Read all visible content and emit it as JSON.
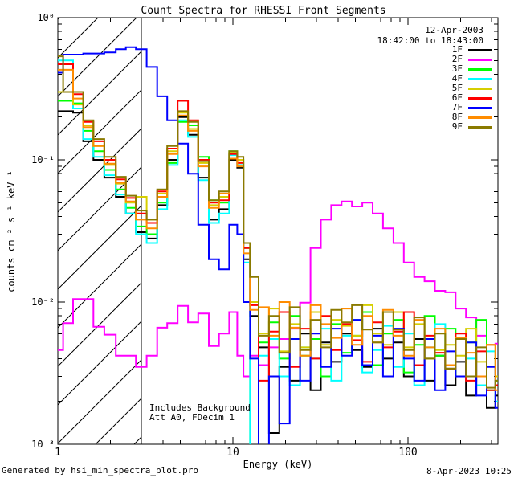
{
  "title": "Count Spectra for RHESSI Front Segments",
  "annotations": {
    "date": "12-Apr-2003",
    "time_range": "18:42:00 to 18:43:00",
    "background_note": "Includes Background",
    "att_note": "Att A0, FDecim 1"
  },
  "footer": {
    "left": "Generated by hsi_min_spectra_plot.pro",
    "right": "8-Apr-2023 10:25"
  },
  "chart_data": {
    "type": "line",
    "mode": "histogram-step",
    "title": "Count Spectra for RHESSI Front Segments",
    "xlabel": "Energy (keV)",
    "ylabel": "counts cm⁻² s⁻¹ keV⁻¹",
    "xscale": "log",
    "yscale": "log",
    "xlim": [
      1,
      326
    ],
    "ylim": [
      0.001,
      1
    ],
    "x_major_ticks": [
      1,
      10,
      100
    ],
    "x_tick_labels": [
      "1",
      "10",
      "100"
    ],
    "y_major_ticks": [
      1,
      0.1,
      0.01,
      0.001
    ],
    "y_tick_labels": [
      "10⁰",
      "10⁻¹",
      "10⁻²",
      "10⁻³"
    ],
    "grid": false,
    "legend_position": "top-right-inside",
    "hatched_region": {
      "from_keV": 1.0,
      "to_keV": 3.0,
      "style": "diagonal-hatch"
    },
    "energies_keV": [
      1.0,
      1.15,
      1.3,
      1.5,
      1.7,
      2.0,
      2.3,
      2.6,
      3.0,
      3.45,
      3.95,
      4.5,
      5.2,
      5.9,
      6.8,
      7.8,
      8.9,
      10.2,
      11.0,
      12.0,
      13.1,
      15.0,
      17.2,
      19.7,
      22.6,
      25.9,
      29.7,
      34.0,
      39.0,
      44.7,
      51.2,
      58.7,
      67.3,
      77.1,
      88.4,
      101.3,
      116.1,
      133.1,
      152.5,
      174.8,
      200.3,
      229.6,
      263.1,
      301.5,
      330.0
    ],
    "units": "counts cm^-2 s^-1 keV^-1",
    "series": [
      {
        "name": "1F",
        "color": "#000000",
        "values": [
          0.22,
          0.22,
          0.215,
          0.135,
          0.1,
          0.075,
          0.055,
          0.042,
          0.031,
          0.028,
          0.048,
          0.1,
          0.2,
          0.15,
          0.075,
          0.038,
          0.045,
          0.1,
          0.088,
          0.02,
          0.008,
          0.0048,
          0.0012,
          0.0035,
          0.0028,
          0.006,
          0.0024,
          0.0052,
          0.0038,
          0.006,
          0.0046,
          0.0035,
          0.0065,
          0.004,
          0.0052,
          0.003,
          0.0055,
          0.0028,
          0.0042,
          0.0026,
          0.0038,
          0.0022,
          0.003,
          0.0018,
          0.0022
        ]
      },
      {
        "name": "2F",
        "color": "#ff00ff",
        "values": [
          0.0046,
          0.0071,
          0.0105,
          0.0105,
          0.0067,
          0.0059,
          0.0042,
          0.0042,
          0.0035,
          0.0042,
          0.0066,
          0.0071,
          0.0094,
          0.0072,
          0.0083,
          0.0049,
          0.006,
          0.0085,
          0.0042,
          0.003,
          0.0042,
          0.0036,
          0.0048,
          0.0055,
          0.0065,
          0.0099,
          0.024,
          0.038,
          0.048,
          0.051,
          0.047,
          0.05,
          0.042,
          0.033,
          0.026,
          0.019,
          0.015,
          0.014,
          0.012,
          0.0117,
          0.009,
          0.0078,
          0.0058,
          0.005,
          0.0051
        ]
      },
      {
        "name": "3F",
        "color": "#00ff00",
        "values": [
          0.26,
          0.26,
          0.25,
          0.16,
          0.115,
          0.085,
          0.062,
          0.046,
          0.034,
          0.03,
          0.05,
          0.095,
          0.185,
          0.175,
          0.105,
          0.052,
          0.05,
          0.115,
          0.1,
          0.024,
          0.0009,
          0.0052,
          0.0072,
          0.004,
          0.008,
          0.0042,
          0.0055,
          0.003,
          0.007,
          0.0044,
          0.0058,
          0.0085,
          0.0036,
          0.006,
          0.0075,
          0.0032,
          0.005,
          0.008,
          0.0042,
          0.0065,
          0.003,
          0.0052,
          0.0075,
          0.0024,
          0.0028
        ]
      },
      {
        "name": "4F",
        "color": "#00ffff",
        "values": [
          0.5,
          0.5,
          0.23,
          0.14,
          0.105,
          0.078,
          0.057,
          0.042,
          0.03,
          0.026,
          0.045,
          0.092,
          0.19,
          0.145,
          0.072,
          0.036,
          0.042,
          0.108,
          0.092,
          0.019,
          0.0008,
          0.0042,
          0.0055,
          0.003,
          0.0026,
          0.0048,
          0.004,
          0.0065,
          0.0028,
          0.0058,
          0.0075,
          0.0032,
          0.0046,
          0.0068,
          0.0035,
          0.006,
          0.0026,
          0.0048,
          0.007,
          0.0034,
          0.0055,
          0.004,
          0.0026,
          0.0045,
          0.002
        ]
      },
      {
        "name": "5F",
        "color": "#d6ce00",
        "values": [
          0.3,
          0.3,
          0.245,
          0.175,
          0.125,
          0.092,
          0.068,
          0.05,
          0.055,
          0.038,
          0.058,
          0.115,
          0.215,
          0.165,
          0.095,
          0.048,
          0.055,
          0.112,
          0.1,
          0.026,
          0.01,
          0.006,
          0.009,
          0.0045,
          0.007,
          0.0048,
          0.0085,
          0.005,
          0.0075,
          0.0068,
          0.0058,
          0.0095,
          0.006,
          0.005,
          0.0085,
          0.0048,
          0.007,
          0.004,
          0.0046,
          0.005,
          0.0042,
          0.0065,
          0.0038,
          0.005,
          0.003
        ]
      },
      {
        "name": "6F",
        "color": "#ff0000",
        "values": [
          0.47,
          0.47,
          0.29,
          0.185,
          0.135,
          0.1,
          0.073,
          0.054,
          0.042,
          0.036,
          0.06,
          0.12,
          0.26,
          0.19,
          0.1,
          0.05,
          0.052,
          0.11,
          0.095,
          0.024,
          0.0095,
          0.0028,
          0.0062,
          0.0085,
          0.0035,
          0.0065,
          0.004,
          0.008,
          0.0046,
          0.007,
          0.0054,
          0.0038,
          0.0072,
          0.0048,
          0.0062,
          0.0085,
          0.0036,
          0.0058,
          0.0044,
          0.0034,
          0.006,
          0.0028,
          0.0045,
          0.0024,
          0.0026
        ]
      },
      {
        "name": "7F",
        "color": "#0000ff",
        "values": [
          0.41,
          0.55,
          0.55,
          0.56,
          0.56,
          0.57,
          0.6,
          0.62,
          0.6,
          0.45,
          0.28,
          0.19,
          0.13,
          0.08,
          0.035,
          0.02,
          0.017,
          0.035,
          0.03,
          0.01,
          0.004,
          0.0009,
          0.003,
          0.0014,
          0.0055,
          0.0028,
          0.006,
          0.0035,
          0.0065,
          0.0042,
          0.0075,
          0.0036,
          0.0058,
          0.003,
          0.0065,
          0.004,
          0.0028,
          0.0055,
          0.0024,
          0.0045,
          0.003,
          0.0052,
          0.0022,
          0.0035,
          0.0018
        ]
      },
      {
        "name": "8F",
        "color": "#ff8c00",
        "values": [
          0.43,
          0.43,
          0.27,
          0.17,
          0.125,
          0.094,
          0.069,
          0.051,
          0.038,
          0.033,
          0.055,
          0.11,
          0.205,
          0.16,
          0.09,
          0.046,
          0.058,
          0.102,
          0.09,
          0.022,
          0.0088,
          0.0092,
          0.0058,
          0.01,
          0.0066,
          0.0042,
          0.0095,
          0.007,
          0.0056,
          0.009,
          0.005,
          0.008,
          0.0052,
          0.0088,
          0.0058,
          0.0042,
          0.0075,
          0.0048,
          0.0065,
          0.0036,
          0.0056,
          0.0044,
          0.003,
          0.005,
          0.0024
        ]
      },
      {
        "name": "9F",
        "color": "#8a7a00",
        "values": [
          0.535,
          0.3,
          0.3,
          0.19,
          0.14,
          0.105,
          0.076,
          0.056,
          0.044,
          0.038,
          0.062,
          0.125,
          0.22,
          0.185,
          0.098,
          0.052,
          0.06,
          0.115,
          0.105,
          0.026,
          0.015,
          0.0058,
          0.008,
          0.0044,
          0.0092,
          0.0046,
          0.0075,
          0.0048,
          0.0088,
          0.0072,
          0.0095,
          0.0064,
          0.0052,
          0.0085,
          0.0064,
          0.0046,
          0.0078,
          0.004,
          0.006,
          0.0034,
          0.0055,
          0.003,
          0.0048,
          0.0025,
          0.0028
        ]
      }
    ]
  }
}
